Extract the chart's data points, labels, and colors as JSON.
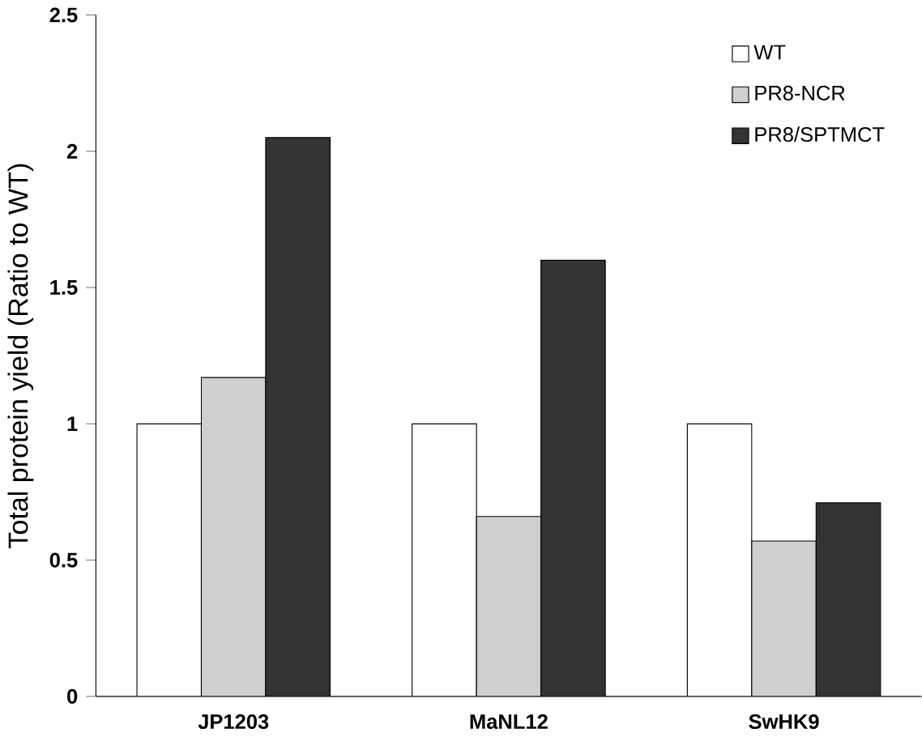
{
  "chart_data": {
    "type": "bar",
    "ylabel": "Total protein yield (Ratio to WT)",
    "categories": [
      "JP1203",
      "MaNL12",
      "SwHK9"
    ],
    "series": [
      {
        "name": "WT",
        "color": "#ffffff",
        "values": [
          1.0,
          1.0,
          1.0
        ]
      },
      {
        "name": "PR8-NCR",
        "color": "#cfcfcf",
        "values": [
          1.17,
          0.66,
          0.57
        ]
      },
      {
        "name": "PR8/SPTMCT",
        "color": "#333333",
        "values": [
          2.05,
          1.6,
          0.71
        ]
      }
    ],
    "ylim": [
      0,
      2.5
    ],
    "yticks": [
      0,
      0.5,
      1,
      1.5,
      2,
      2.5
    ],
    "legend": "top right",
    "grid": false
  }
}
